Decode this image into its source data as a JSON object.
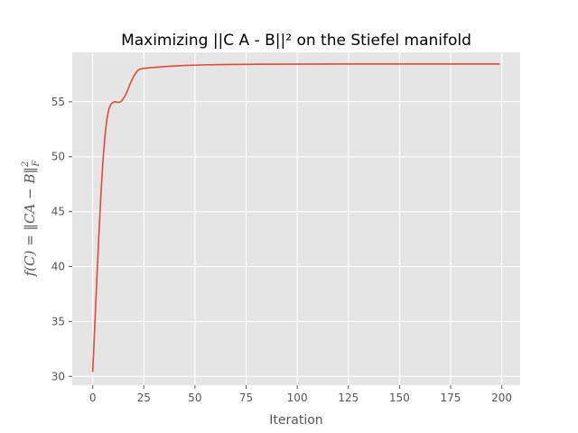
{
  "chart_data": {
    "type": "line",
    "title": "Maximizing ||C A - B||² on the Stiefel manifold",
    "xlabel": "Iteration",
    "ylabel": {
      "prefix": "f(C) = ‖CA − B‖",
      "superscript": "2",
      "subscript": "F"
    },
    "xlim": [
      -10,
      209
    ],
    "ylim": [
      29.2,
      59.5
    ],
    "xticks": [
      0,
      25,
      50,
      75,
      100,
      125,
      150,
      175,
      200
    ],
    "yticks": [
      30,
      35,
      40,
      45,
      50,
      55
    ],
    "grid": true,
    "line_color": "#E24A33",
    "background_color": "#E5E5E5",
    "series": [
      {
        "x": [
          0,
          1,
          2,
          3,
          4,
          5,
          6,
          7,
          8,
          9,
          10,
          11,
          12,
          13,
          14,
          15,
          16,
          17,
          18,
          19,
          20,
          21,
          22,
          23,
          24,
          25,
          26,
          27,
          28,
          30,
          35,
          40,
          45,
          50,
          55,
          60,
          70,
          80,
          100,
          125,
          150,
          175,
          199
        ],
        "y": [
          30.4,
          34.5,
          38.8,
          42.8,
          46.5,
          49.6,
          51.9,
          53.5,
          54.4,
          54.8,
          54.95,
          55.0,
          54.95,
          54.95,
          55.05,
          55.3,
          55.6,
          56.0,
          56.5,
          56.9,
          57.3,
          57.6,
          57.85,
          57.95,
          58.0,
          58.05,
          58.05,
          58.08,
          58.1,
          58.12,
          58.2,
          58.25,
          58.3,
          58.33,
          58.36,
          58.38,
          58.4,
          58.42,
          58.43,
          58.44,
          58.44,
          58.44,
          58.44
        ]
      }
    ]
  }
}
